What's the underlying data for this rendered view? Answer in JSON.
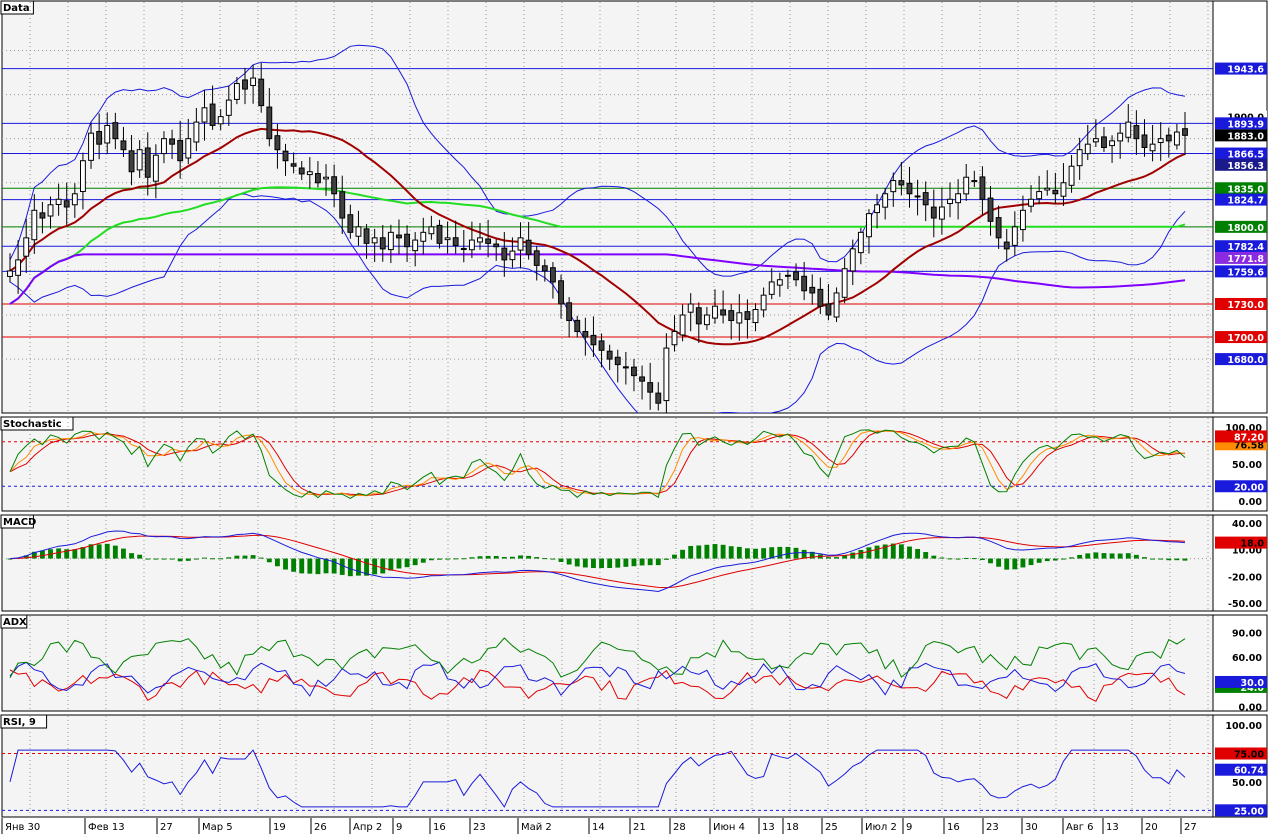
{
  "chart_data": {
    "type": "candlestick",
    "x_labels": [
      "Янв 30",
      "Фев 13",
      "27",
      "Мар 5",
      "19",
      "26",
      "Апр 2",
      "9",
      "16",
      "23",
      "Май 2",
      "14",
      "21",
      "28",
      "Июн 4",
      "13",
      "18",
      "25",
      "Июл 2",
      "9",
      "16",
      "23",
      "30",
      "Авг 6",
      "13",
      "20",
      "27"
    ],
    "panels": [
      {
        "title": "Data",
        "ylim": [
          1632,
          2004
        ],
        "price_labels": [
          {
            "value": "1943.6",
            "bg": "#1a1adc",
            "fg": "#ffffff"
          },
          {
            "value": "1900.0",
            "bg": "#ffffff",
            "fg": "#000000"
          },
          {
            "value": "1893.9",
            "bg": "#1a1adc",
            "fg": "#ffffff"
          },
          {
            "value": "1883.0",
            "bg": "#000000",
            "fg": "#ffffff"
          },
          {
            "value": "1866.5",
            "bg": "#1a1adc",
            "fg": "#ffffff"
          },
          {
            "value": "1856.3",
            "bg": "#1a1a8c",
            "fg": "#ffffff"
          },
          {
            "value": "1835.0",
            "bg": "#008000",
            "fg": "#ffffff"
          },
          {
            "value": "1824.7",
            "bg": "#1a1adc",
            "fg": "#ffffff"
          },
          {
            "value": "1800.0",
            "bg": "#008000",
            "fg": "#ffffff"
          },
          {
            "value": "1782.4",
            "bg": "#1a1adc",
            "fg": "#ffffff"
          },
          {
            "value": "1771.8",
            "bg": "#8a2be2",
            "fg": "#ffffff"
          },
          {
            "value": "1759.6",
            "bg": "#1a1adc",
            "fg": "#ffffff"
          },
          {
            "value": "1730.0",
            "bg": "#e00000",
            "fg": "#ffffff"
          },
          {
            "value": "1700.0",
            "bg": "#e00000",
            "fg": "#ffffff"
          },
          {
            "value": "1680.0",
            "bg": "#1a1adc",
            "fg": "#ffffff"
          }
        ],
        "levels": [
          {
            "value": 1943.6,
            "color": "#1a1adc"
          },
          {
            "value": 1893.9,
            "color": "#1a1adc"
          },
          {
            "value": 1866.5,
            "color": "#1a1adc"
          },
          {
            "value": 1835.0,
            "color": "#008000"
          },
          {
            "value": 1824.7,
            "color": "#1a1adc"
          },
          {
            "value": 1800.0,
            "color": "#008000"
          },
          {
            "value": 1782.4,
            "color": "#1a1adc"
          },
          {
            "value": 1759.6,
            "color": "#1a1adc"
          },
          {
            "value": 1730.0,
            "color": "#e00000"
          },
          {
            "value": 1700.0,
            "color": "#e00000"
          }
        ],
        "ohlc_close": [
          1760,
          1770,
          1790,
          1815,
          1808,
          1820,
          1825,
          1818,
          1830,
          1860,
          1885,
          1875,
          1892,
          1880,
          1870,
          1850,
          1870,
          1845,
          1865,
          1880,
          1875,
          1860,
          1880,
          1895,
          1908,
          1892,
          1900,
          1915,
          1930,
          1925,
          1935,
          1910,
          1880,
          1870,
          1860,
          1855,
          1848,
          1850,
          1840,
          1845,
          1830,
          1808,
          1795,
          1800,
          1785,
          1790,
          1780,
          1795,
          1790,
          1782,
          1788,
          1795,
          1800,
          1785,
          1790,
          1783,
          1780,
          1788,
          1790,
          1785,
          1782,
          1770,
          1778,
          1790,
          1775,
          1765,
          1760,
          1750,
          1730,
          1715,
          1705,
          1700,
          1693,
          1688,
          1680,
          1675,
          1672,
          1665,
          1660,
          1650,
          1640,
          1690,
          1705,
          1720,
          1730,
          1712,
          1720,
          1728,
          1720,
          1715,
          1722,
          1716,
          1725,
          1738,
          1750,
          1752,
          1756,
          1752,
          1742,
          1740,
          1728,
          1720,
          1740,
          1762,
          1780,
          1795,
          1812,
          1820,
          1830,
          1842,
          1838,
          1830,
          1828,
          1820,
          1808,
          1818,
          1825,
          1830,
          1845,
          1842,
          1825,
          1805,
          1790,
          1780,
          1800,
          1815,
          1825,
          1832,
          1835,
          1830,
          1840,
          1855,
          1870,
          1875,
          1880,
          1872,
          1878,
          1885,
          1895,
          1880,
          1872,
          1875,
          1880,
          1878,
          1886,
          1883
        ]
      },
      {
        "title": "Stochastic",
        "ylim": [
          -12,
          112
        ],
        "axis_labels": [
          "100.00",
          "50.00",
          "0.00"
        ],
        "level_labels": [
          {
            "value": "20.00",
            "bg": "#1a1adc",
            "fg": "#ffffff"
          },
          {
            "value": "76.58",
            "bg": "#ff8c00",
            "fg": "#000000"
          },
          {
            "value": "87.20",
            "bg": "#e00000",
            "fg": "#ffffff"
          }
        ]
      },
      {
        "title": "MACD",
        "ylim": [
          -58,
          48
        ],
        "axis_labels": [
          "40.00",
          "10.00",
          "-20.00",
          "-50.00"
        ],
        "level_labels": [
          {
            "value": "18.0",
            "bg": "#e00000",
            "fg": "#000000"
          }
        ]
      },
      {
        "title": "ADX",
        "ylim": [
          -4,
          110
        ],
        "axis_labels": [
          "90.00",
          "60.00",
          "0.00"
        ],
        "level_labels": [
          {
            "value": "24.0",
            "bg": "#008000",
            "fg": "#ffffff"
          },
          {
            "value": "30.0",
            "bg": "#1a1adc",
            "fg": "#ffffff"
          }
        ]
      },
      {
        "title": "RSI, 9",
        "ylim": [
          20,
          108
        ],
        "axis_labels": [
          "100.00",
          "50.00"
        ],
        "level_labels": [
          {
            "value": "75.00",
            "bg": "#e00000",
            "fg": "#000000"
          },
          {
            "value": "60.74",
            "bg": "#1a1adc",
            "fg": "#ffffff"
          },
          {
            "value": "25.00",
            "bg": "#1a1adc",
            "fg": "#ffffff"
          }
        ]
      }
    ],
    "colors": {
      "bg": "#f4f4f4",
      "bollinger": "#1a1adc",
      "ma_fast": "#a00000",
      "ma_green": "#22dd22",
      "ma_purple": "#8000ff",
      "stoch_k": "#008000",
      "stoch_d1": "#ff8c00",
      "stoch_d2": "#e00000",
      "macd": "#1a1adc",
      "signal": "#e00000",
      "hist": "#008000",
      "adx": "#008000",
      "dip": "#1a1adc",
      "dim": "#e00000",
      "rsi": "#1a1adc"
    }
  }
}
